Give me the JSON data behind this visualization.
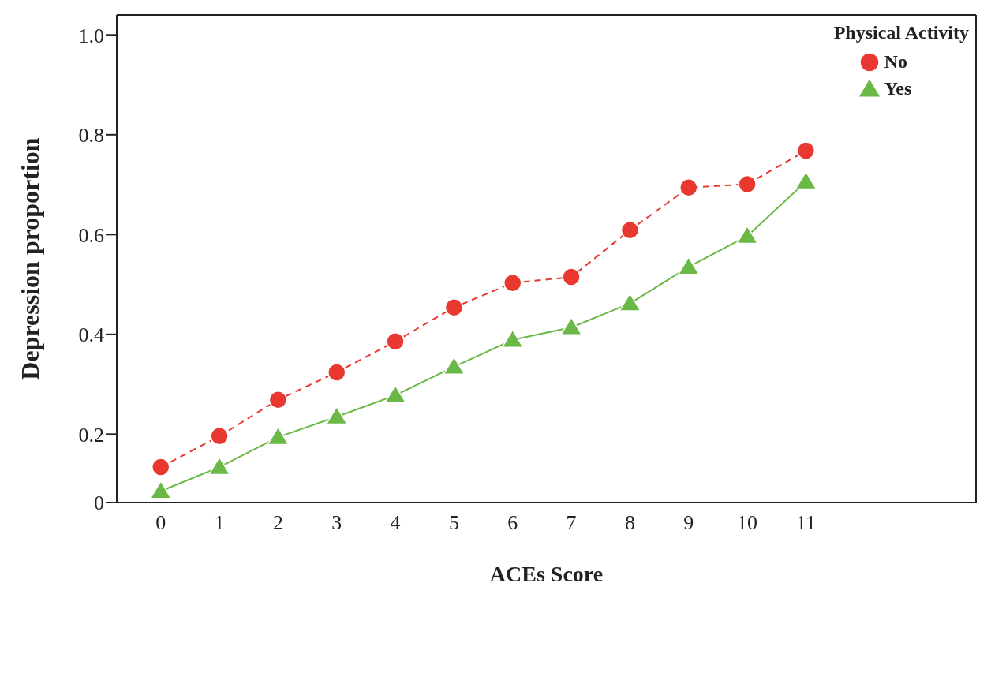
{
  "chart_data": {
    "type": "line",
    "xlabel": "ACEs Score",
    "ylabel": "Depression proportion",
    "legend_title": "Physical Activity",
    "legend": "top right",
    "grid": false,
    "x": [
      0,
      1,
      2,
      3,
      4,
      5,
      6,
      7,
      8,
      9,
      10,
      11
    ],
    "xlim": [
      -0.75,
      13.9
    ],
    "xticks": [
      0,
      1,
      2,
      3,
      4,
      5,
      6,
      7,
      8,
      9,
      10,
      11
    ],
    "ylim": [
      0.063,
      1.04
    ],
    "yticks": [
      {
        "value": 0.063,
        "label": "0"
      },
      {
        "value": 0.2,
        "label": "0.2"
      },
      {
        "value": 0.4,
        "label": "0.4"
      },
      {
        "value": 0.6,
        "label": "0.6"
      },
      {
        "value": 0.8,
        "label": "0.8"
      },
      {
        "value": 1.0,
        "label": "1.0"
      }
    ],
    "series": [
      {
        "name": "No",
        "color": "#e8382f",
        "marker": "circle",
        "line_style": "dashed",
        "values": [
          0.134,
          0.196,
          0.269,
          0.324,
          0.386,
          0.454,
          0.503,
          0.515,
          0.609,
          0.694,
          0.701,
          0.768
        ]
      },
      {
        "name": "Yes",
        "color": "#6ab845",
        "marker": "triangle",
        "line_style": "solid",
        "values": [
          0.086,
          0.134,
          0.194,
          0.235,
          0.278,
          0.335,
          0.389,
          0.414,
          0.462,
          0.535,
          0.597,
          0.706
        ]
      }
    ]
  }
}
